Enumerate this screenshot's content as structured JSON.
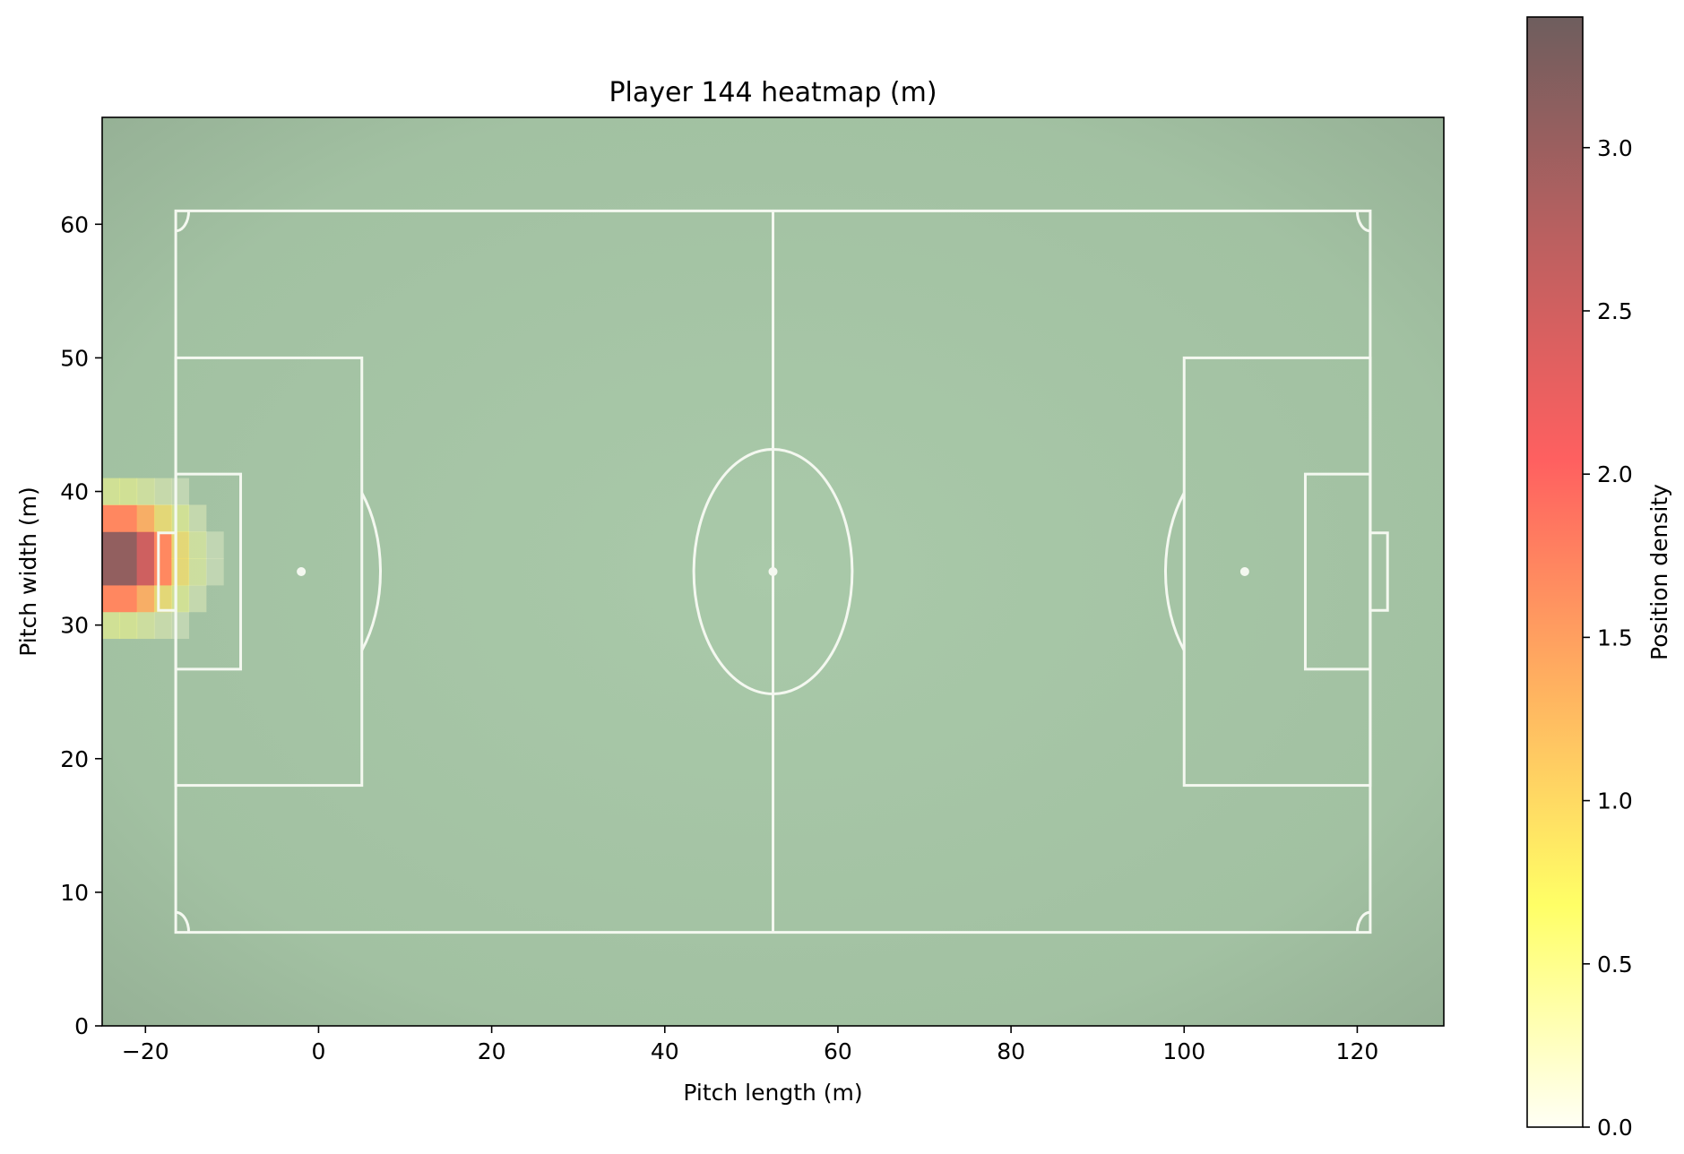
{
  "chart_data": {
    "type": "heatmap",
    "title": "Player 144 heatmap (m)",
    "xlabel": "Pitch length (m)",
    "ylabel": "Pitch width (m)",
    "xlim": [
      -25,
      130
    ],
    "ylim": [
      0,
      68
    ],
    "x_ticks": [
      -20,
      0,
      20,
      40,
      60,
      80,
      100,
      120
    ],
    "x_tick_labels": [
      "−20",
      "0",
      "20",
      "40",
      "60",
      "80",
      "100",
      "120"
    ],
    "y_ticks": [
      0,
      10,
      20,
      30,
      40,
      50,
      60
    ],
    "y_tick_labels": [
      "0",
      "10",
      "20",
      "30",
      "40",
      "50",
      "60"
    ],
    "grid": false,
    "colorbar": {
      "label": "Position density",
      "range": [
        0,
        3.4
      ],
      "ticks": [
        0.0,
        0.5,
        1.0,
        1.5,
        2.0,
        2.5,
        3.0
      ],
      "tick_labels": [
        "0.0",
        "0.5",
        "1.0",
        "1.5",
        "2.0",
        "2.5",
        "3.0"
      ],
      "colormap": "hot_r",
      "colors": [
        "#fffff5",
        "#ffff66",
        "#ffb060",
        "#ff6060",
        "#bb6060",
        "#6e5e5e"
      ]
    },
    "density_peak": {
      "x": -23,
      "y": 35,
      "value": 3.4,
      "sigma_x": 4.5,
      "sigma_y": 2.6
    },
    "pitch": {
      "x_min": -16.5,
      "x_max": 121.5,
      "y_min": 7,
      "y_max": 61,
      "halfway_x": 52.5,
      "center_y": 34,
      "center_circle_radius": 9.15,
      "penalty_area_depth": 21.5,
      "penalty_area_y": [
        18,
        50
      ],
      "goal_area_depth": 7.5,
      "goal_area_y": [
        26.7,
        41.3
      ],
      "penalty_spot_distance": 14.5,
      "goal_depth": 2,
      "goal_y": [
        31.1,
        36.9
      ],
      "corner_arc_radius": 1.5,
      "grass_color": "#a3c3a3",
      "line_color": "#f4f8f0"
    }
  }
}
